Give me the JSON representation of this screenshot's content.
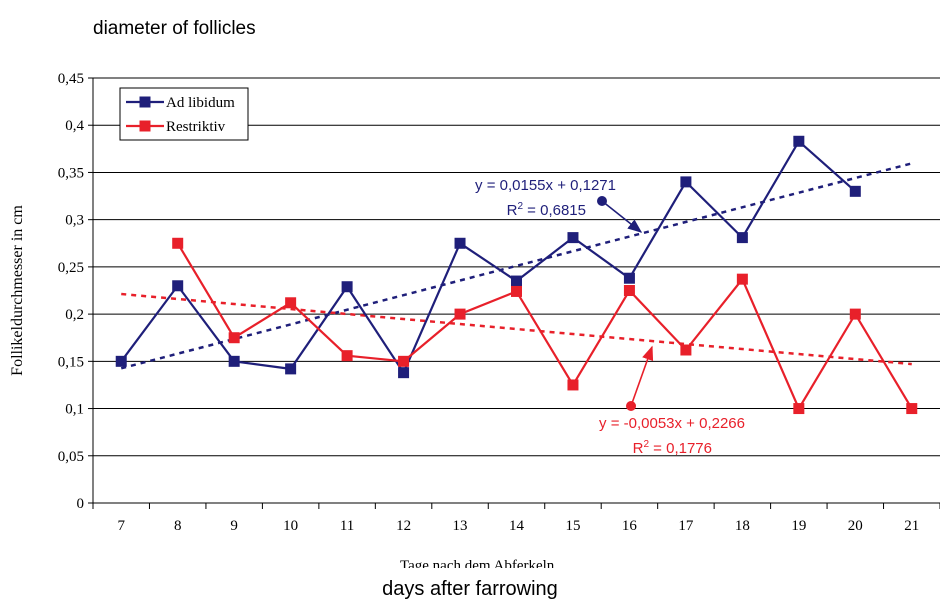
{
  "chart_data": {
    "type": "line",
    "title": "diameter of follicles",
    "xlabel": "days after farrowing",
    "xlabel_overlaid": "Tage nach dem Abferkeln",
    "ylabel": "Follikeldurchmesser in cm",
    "categories": [
      "7",
      "8",
      "9",
      "10",
      "11",
      "12",
      "13",
      "14",
      "15",
      "16",
      "17",
      "18",
      "19",
      "20",
      "21"
    ],
    "ylim": [
      0,
      0.45
    ],
    "yticks": [
      "0",
      "0,05",
      "0,1",
      "0,15",
      "0,2",
      "0,25",
      "0,3",
      "0,35",
      "0,4",
      "0,45"
    ],
    "grid": true,
    "legend": "top-left",
    "series": [
      {
        "name": "Ad libidum",
        "color": "#1f1f7a",
        "values": [
          0.15,
          0.23,
          0.15,
          0.142,
          0.229,
          0.138,
          0.275,
          0.235,
          0.281,
          0.238,
          0.34,
          0.281,
          0.383,
          0.33,
          null
        ],
        "trend": {
          "slope": 0.0155,
          "intercept": 0.1271,
          "equation": "y = 0,0155x + 0,1271",
          "r2_prefix": "R",
          "r2_value": " = 0,6815"
        }
      },
      {
        "name": "Restriktiv",
        "color": "#e8202a",
        "values": [
          null,
          0.275,
          0.175,
          0.212,
          0.156,
          0.15,
          0.2,
          0.224,
          0.125,
          0.225,
          0.162,
          0.237,
          0.1,
          0.2,
          0.1
        ],
        "trend": {
          "slope": -0.0053,
          "intercept": 0.2266,
          "equation": "y = -0,0053x + 0,2266",
          "r2_prefix": "R",
          "r2_value": " = 0,1776"
        }
      }
    ]
  }
}
